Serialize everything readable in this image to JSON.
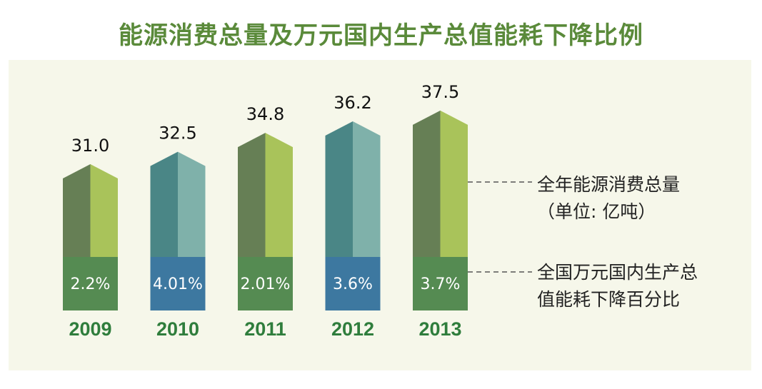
{
  "title": "能源消费总量及万元国内生产总值能耗下降比例",
  "legend": {
    "consumption_line1": "全年能源消费总量",
    "consumption_line2": "（单位: 亿吨）",
    "decline_line1": "全国万元国内生产总",
    "decline_line2": "值能耗下降百分比"
  },
  "colors": {
    "green_dark": "#667f55",
    "green_light": "#a9c35a",
    "teal_dark": "#4a8686",
    "teal_light": "#7fb1aa",
    "base_green": "#558b52",
    "base_blue": "#3d78a0",
    "year_text": "#2f7d3c"
  },
  "chart_data": {
    "type": "bar",
    "categories": [
      "2009",
      "2010",
      "2011",
      "2012",
      "2013"
    ],
    "series": [
      {
        "name": "全年能源消费总量",
        "values": [
          31.0,
          32.5,
          34.8,
          36.2,
          37.5
        ],
        "labels": [
          "31.0",
          "32.5",
          "34.8",
          "36.2",
          "37.5"
        ]
      },
      {
        "name": "全国万元国内生产总值能耗下降百分比",
        "values": [
          2.2,
          4.01,
          2.01,
          3.6,
          3.7
        ],
        "labels": [
          "2.2%",
          "4.01%",
          "2.01%",
          "3.6%",
          "3.7%"
        ]
      }
    ],
    "bar_style": [
      "green",
      "teal",
      "green",
      "teal",
      "green"
    ]
  }
}
